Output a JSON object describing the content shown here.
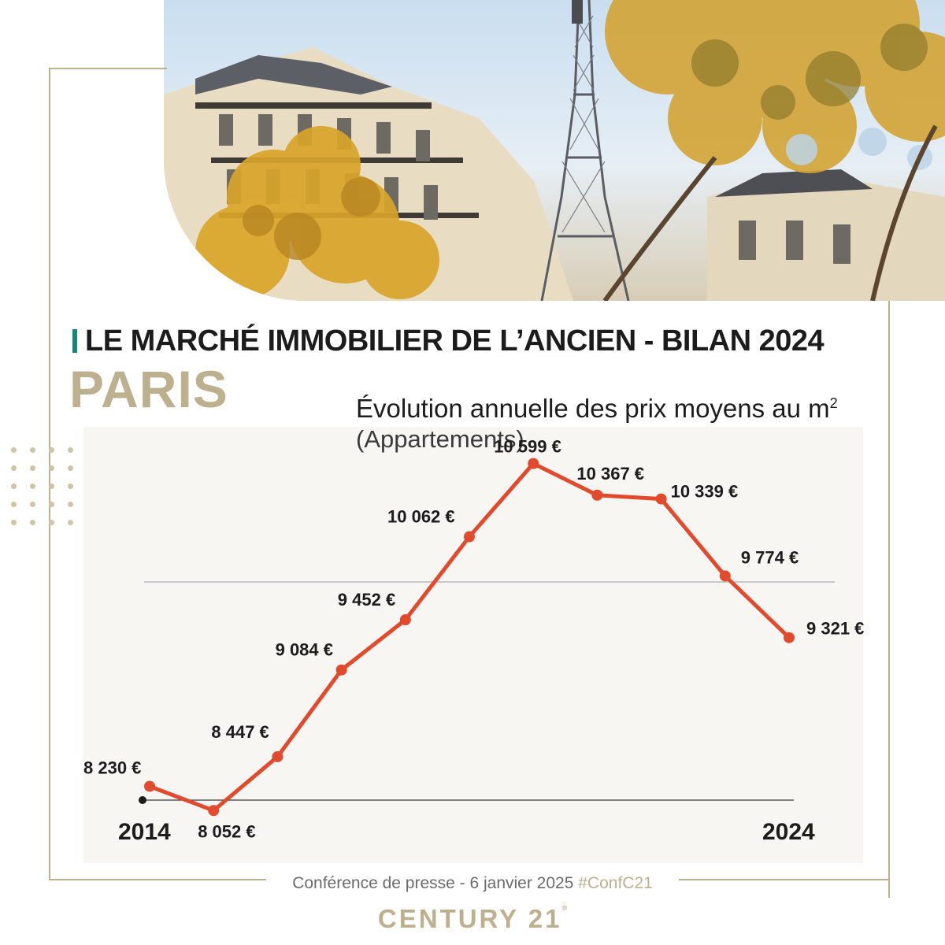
{
  "header": {
    "title": "LE MARCHÉ IMMOBILIER DE L’ANCIEN - BILAN 2024",
    "city": "PARIS"
  },
  "colors": {
    "gold": "#bdb08f",
    "accent_teal": "#18877a",
    "line": "#e24a2e",
    "panel": "#f7f6f2",
    "text": "#1c1c1c"
  },
  "chart_data": {
    "type": "line",
    "title": "Évolution annuelle des prix moyens au m",
    "title_superscript": "2",
    "subtitle": "(Appartements)",
    "x": [
      2014,
      2015,
      2016,
      2017,
      2018,
      2019,
      2020,
      2021,
      2022,
      2023,
      2024
    ],
    "x_tick_labels": [
      "2014",
      "2024"
    ],
    "series": [
      {
        "values": [
          8230,
          8052,
          8447,
          9084,
          9452,
          10062,
          10599,
          10367,
          10339,
          9774,
          9321
        ],
        "labels": [
          "8 230 €",
          "8 052 €",
          "8 447 €",
          "9 084 €",
          "9 452 €",
          "10 062 €",
          "10 599 €",
          "10 367 €",
          "10 339 €",
          "9 774 €",
          "9 321 €"
        ]
      }
    ],
    "ylim": [
      7990,
      10880
    ],
    "grid": "one horizontal reference line",
    "legend": "none"
  },
  "footer": {
    "text": "Conférence de presse - 6 janvier 2025",
    "hashtag": "#ConfC21",
    "brand": "CENTURY 21",
    "brand_mark": "®"
  },
  "photo": {
    "icon": "paris-street-eiffel-tower-photo"
  }
}
